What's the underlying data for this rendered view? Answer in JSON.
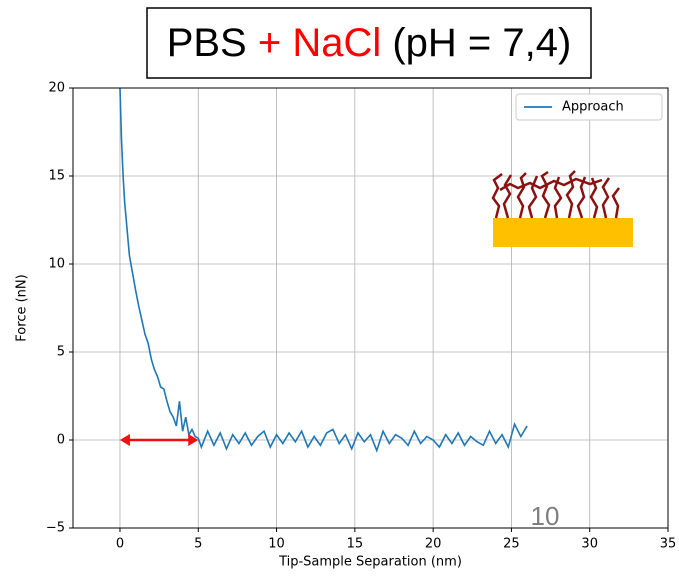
{
  "chart_data": {
    "type": "line",
    "title": [
      {
        "text": "PBS",
        "color": "#000000"
      },
      {
        "text": " + NaCl",
        "color": "#ff0000"
      },
      {
        "text": " (pH = 7,4)",
        "color": "#000000"
      }
    ],
    "x_label": "Tip-Sample Separation (nm)",
    "y_label": "Force (nN)",
    "annotation": "10",
    "xlim": [
      -3,
      35
    ],
    "ylim": [
      -5,
      20
    ],
    "xticks": [
      0,
      5,
      10,
      15,
      20,
      25,
      30,
      35
    ],
    "yticks": [
      {
        "value": -5,
        "label": "−5"
      },
      0,
      5,
      10,
      15,
      20
    ],
    "grid": true,
    "legend": "upper right",
    "arrow_x": [
      0,
      5
    ],
    "arrow_color": "#ee1111",
    "series": [
      {
        "name": "Approach",
        "color": "#1f77b4",
        "x": [
          0,
          0.1,
          0.2,
          0.3,
          0.4,
          0.5,
          0.6,
          0.8,
          1.0,
          1.2,
          1.4,
          1.6,
          1.8,
          2.0,
          2.2,
          2.4,
          2.6,
          2.8,
          3.0,
          3.2,
          3.4,
          3.6,
          3.8,
          4.0,
          4.2,
          4.4,
          4.6,
          4.8,
          5.0,
          5.2,
          5.6,
          6.0,
          6.4,
          6.8,
          7.2,
          7.6,
          8.0,
          8.4,
          8.8,
          9.2,
          9.6,
          10.0,
          10.4,
          10.8,
          11.2,
          11.6,
          12.0,
          12.4,
          12.8,
          13.2,
          13.6,
          14.0,
          14.4,
          14.8,
          15.2,
          15.6,
          16.0,
          16.4,
          16.8,
          17.2,
          17.6,
          18.0,
          18.4,
          18.8,
          19.2,
          19.6,
          20.0,
          20.4,
          20.8,
          21.2,
          21.6,
          22.0,
          22.4,
          22.8,
          23.2,
          23.6,
          24.0,
          24.4,
          24.8,
          25.2,
          25.6,
          26.0
        ],
        "values": [
          20,
          17,
          15,
          13.5,
          12.5,
          11.5,
          10.5,
          9.5,
          8.5,
          7.6,
          6.8,
          6,
          5.5,
          4.6,
          4,
          3.6,
          3,
          2.9,
          2.2,
          1.6,
          1.3,
          0.8,
          2.2,
          0.5,
          1.3,
          0.3,
          0.6,
          0.2,
          0.1,
          -0.4,
          0.5,
          -0.3,
          0.4,
          -0.5,
          0.3,
          -0.2,
          0.4,
          -0.3,
          0.2,
          0.5,
          -0.4,
          0.3,
          -0.2,
          0.4,
          -0.1,
          0.5,
          -0.4,
          0.2,
          -0.3,
          0.4,
          0.6,
          -0.2,
          0.3,
          -0.5,
          0.4,
          -0.1,
          0.3,
          -0.6,
          0.5,
          -0.2,
          0.3,
          0.1,
          -0.3,
          0.5,
          -0.2,
          0.2,
          0,
          -0.4,
          0.3,
          -0.2,
          0.4,
          -0.3,
          0.2,
          -0.1,
          -0.3,
          0.5,
          -0.2,
          0.3,
          -0.4,
          0.9,
          0.2,
          0.8
        ]
      }
    ]
  }
}
